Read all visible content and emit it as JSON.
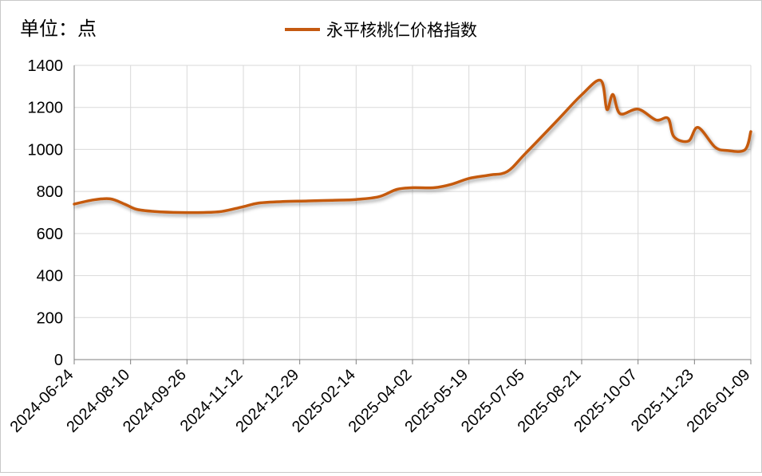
{
  "chart_data": {
    "type": "line",
    "unit_label": "单位：点",
    "legend": {
      "placement": "top-center"
    },
    "grid": true,
    "ylim": [
      0,
      1400
    ],
    "y_ticks": [
      0,
      200,
      400,
      600,
      800,
      1000,
      1200,
      1400
    ],
    "x_tick_labels": [
      "2024-06-24",
      "2024-08-10",
      "2024-09-26",
      "2024-11-12",
      "2024-12-29",
      "2025-02-14",
      "2025-04-02",
      "2025-05-19",
      "2025-07-05",
      "2025-08-21",
      "2025-10-07",
      "2025-11-23",
      "2026-01-09"
    ],
    "series": [
      {
        "name": "永平核桃仁价格指数",
        "color": "#c55a11",
        "points": [
          [
            "2024-06-24",
            740
          ],
          [
            "2024-07-10",
            760
          ],
          [
            "2024-07-24",
            765
          ],
          [
            "2024-08-05",
            740
          ],
          [
            "2024-08-15",
            715
          ],
          [
            "2024-08-30",
            705
          ],
          [
            "2024-09-20",
            700
          ],
          [
            "2024-10-10",
            700
          ],
          [
            "2024-10-25",
            705
          ],
          [
            "2024-11-10",
            725
          ],
          [
            "2024-11-25",
            745
          ],
          [
            "2024-12-15",
            752
          ],
          [
            "2025-01-05",
            755
          ],
          [
            "2025-01-25",
            758
          ],
          [
            "2025-02-14",
            762
          ],
          [
            "2025-03-05",
            775
          ],
          [
            "2025-03-20",
            810
          ],
          [
            "2025-04-02",
            818
          ],
          [
            "2025-04-20",
            818
          ],
          [
            "2025-05-05",
            835
          ],
          [
            "2025-05-19",
            862
          ],
          [
            "2025-06-05",
            878
          ],
          [
            "2025-06-20",
            895
          ],
          [
            "2025-07-05",
            980
          ],
          [
            "2025-08-01",
            1140
          ],
          [
            "2025-08-21",
            1260
          ],
          [
            "2025-09-06",
            1328
          ],
          [
            "2025-09-11",
            1190
          ],
          [
            "2025-09-16",
            1262
          ],
          [
            "2025-09-22",
            1170
          ],
          [
            "2025-10-07",
            1192
          ],
          [
            "2025-10-22",
            1140
          ],
          [
            "2025-11-01",
            1148
          ],
          [
            "2025-11-06",
            1060
          ],
          [
            "2025-11-18",
            1040
          ],
          [
            "2025-11-26",
            1105
          ],
          [
            "2025-12-10",
            1012
          ],
          [
            "2025-12-20",
            995
          ],
          [
            "2026-01-04",
            998
          ],
          [
            "2026-01-09",
            1085
          ]
        ]
      }
    ]
  }
}
